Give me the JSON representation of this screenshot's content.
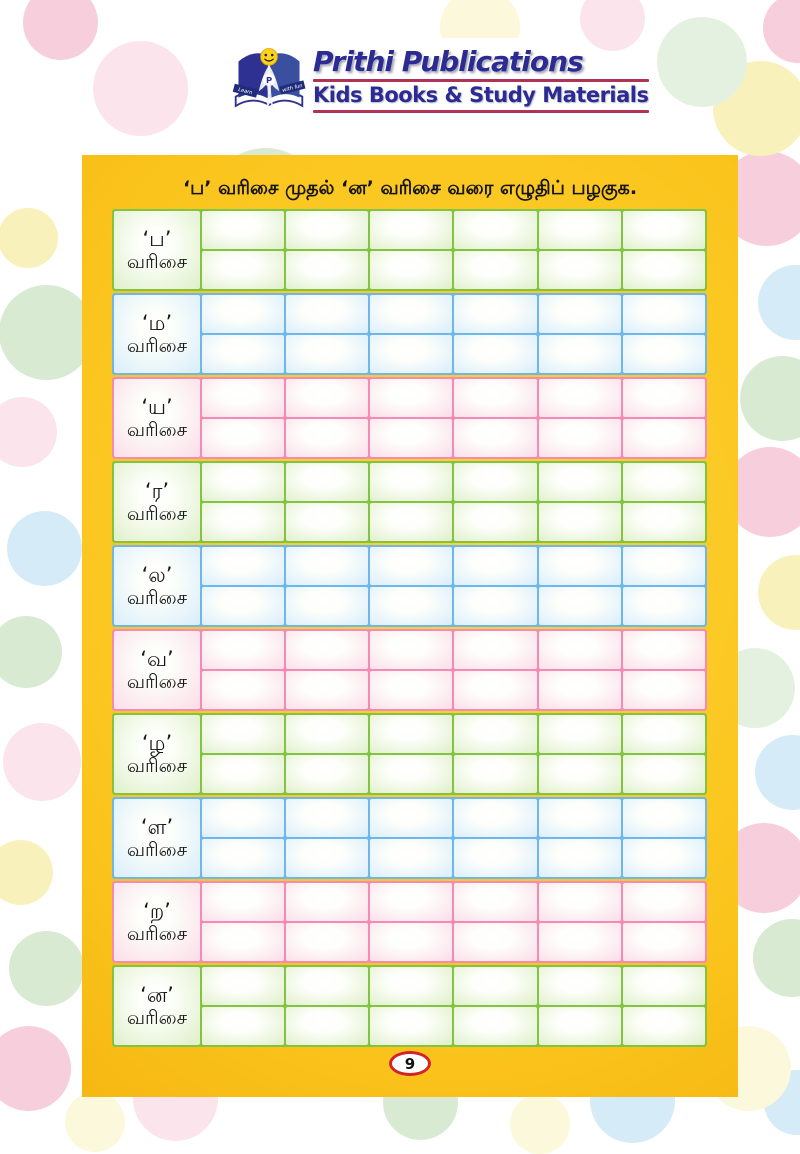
{
  "header": {
    "publisher_name": "Prithi Publications",
    "tagline": "Kids Books & Study Materials",
    "logo": {
      "ribbon_left": "Learn",
      "ribbon_right": "with fun",
      "monogram": "P"
    }
  },
  "worksheet": {
    "title": "‘ப’ வரிசை முதல் ‘ன’ வரிசை வரை எழுதிப் பழகுக.",
    "row_label_suffix": "வரிசை",
    "columns": 6,
    "practice_lines_per_row": 2,
    "rows": [
      {
        "letter": "ப",
        "label": "‘ப’",
        "color": "green"
      },
      {
        "letter": "ம",
        "label": "‘ம’",
        "color": "blue"
      },
      {
        "letter": "ய",
        "label": "‘ய’",
        "color": "pink"
      },
      {
        "letter": "ர",
        "label": "‘ர’",
        "color": "green"
      },
      {
        "letter": "ல",
        "label": "‘ல’",
        "color": "blue"
      },
      {
        "letter": "வ",
        "label": "‘வ’",
        "color": "pink"
      },
      {
        "letter": "ழ",
        "label": "‘ழ’",
        "color": "green"
      },
      {
        "letter": "ள",
        "label": "‘ள’",
        "color": "blue"
      },
      {
        "letter": "ற",
        "label": "‘ற’",
        "color": "pink"
      },
      {
        "letter": "ன",
        "label": "‘ன’",
        "color": "green"
      }
    ],
    "page_number": "9"
  },
  "colors": {
    "rows": {
      "green": {
        "border": "#82C341",
        "fill": "#DEEFC9"
      },
      "blue": {
        "border": "#6FB7E8",
        "fill": "#D8EDFB"
      },
      "pink": {
        "border": "#F18DB5",
        "fill": "#FBDCE8"
      }
    },
    "card_yellow": "#FAC41C",
    "brand_navy": "#2B2B93",
    "brand_maroon": "#B03356",
    "badge_red": "#D2232A"
  }
}
